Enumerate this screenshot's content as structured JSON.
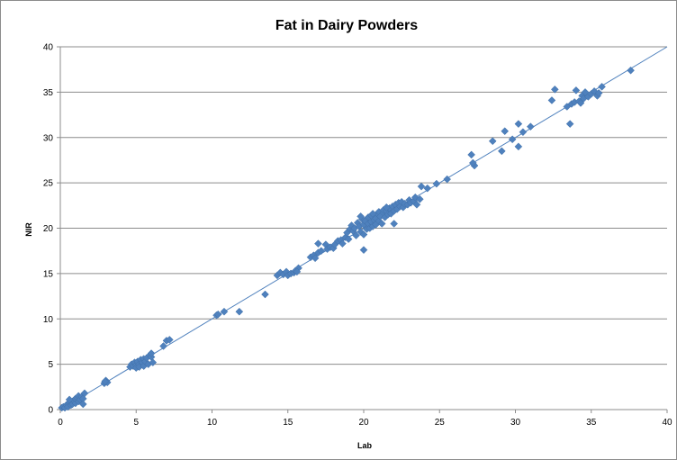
{
  "chart_data": {
    "type": "scatter",
    "title": "Fat in Dairy Powders",
    "xlabel": "Lab",
    "ylabel": "NIR",
    "xlim": [
      0,
      40
    ],
    "ylim": [
      0,
      40
    ],
    "xticks": [
      "0",
      "5",
      "10",
      "15",
      "20",
      "25",
      "30",
      "35",
      "40"
    ],
    "yticks": [
      "0",
      "5",
      "10",
      "15",
      "20",
      "25",
      "30",
      "35",
      "40"
    ],
    "grid": "horizontal",
    "legend": "none",
    "marker_color": "#4f81bd",
    "trendline": {
      "from": [
        0,
        0
      ],
      "to": [
        40,
        40
      ],
      "color": "#4f81bd"
    },
    "series": [
      {
        "points": [
          [
            0.1,
            0.2
          ],
          [
            0.2,
            0.3
          ],
          [
            0.3,
            0.2
          ],
          [
            0.4,
            0.5
          ],
          [
            0.5,
            0.6
          ],
          [
            0.5,
            0.3
          ],
          [
            0.6,
            0.8
          ],
          [
            0.7,
            0.5
          ],
          [
            0.8,
            0.9
          ],
          [
            0.8,
            0.6
          ],
          [
            0.9,
            1.0
          ],
          [
            1.0,
            0.7
          ],
          [
            1.0,
            1.2
          ],
          [
            1.1,
            1.3
          ],
          [
            1.2,
            0.9
          ],
          [
            1.2,
            1.5
          ],
          [
            1.3,
            1.1
          ],
          [
            1.4,
            1.4
          ],
          [
            1.5,
            1.2
          ],
          [
            1.5,
            0.6
          ],
          [
            1.6,
            1.8
          ],
          [
            0.6,
            1.1
          ],
          [
            2.9,
            2.9
          ],
          [
            3.0,
            3.2
          ],
          [
            3.1,
            3.0
          ],
          [
            2.95,
            3.1
          ],
          [
            4.6,
            4.7
          ],
          [
            4.7,
            5.0
          ],
          [
            4.8,
            4.8
          ],
          [
            4.9,
            5.2
          ],
          [
            5.0,
            4.9
          ],
          [
            5.0,
            4.6
          ],
          [
            5.1,
            5.3
          ],
          [
            5.2,
            5.0
          ],
          [
            5.2,
            4.7
          ],
          [
            5.3,
            5.5
          ],
          [
            5.4,
            5.2
          ],
          [
            5.5,
            4.8
          ],
          [
            5.5,
            5.6
          ],
          [
            5.6,
            5.3
          ],
          [
            5.7,
            5.7
          ],
          [
            5.8,
            5.0
          ],
          [
            5.9,
            6.0
          ],
          [
            6.0,
            5.8
          ],
          [
            6.1,
            5.2
          ],
          [
            6.0,
            6.2
          ],
          [
            6.8,
            7.0
          ],
          [
            7.0,
            7.6
          ],
          [
            7.2,
            7.7
          ],
          [
            10.3,
            10.4
          ],
          [
            10.4,
            10.5
          ],
          [
            10.8,
            10.8
          ],
          [
            11.8,
            10.8
          ],
          [
            13.5,
            12.7
          ],
          [
            14.3,
            14.8
          ],
          [
            14.5,
            15.1
          ],
          [
            14.7,
            14.9
          ],
          [
            14.9,
            15.2
          ],
          [
            15.0,
            14.8
          ],
          [
            15.2,
            15.0
          ],
          [
            15.4,
            15.1
          ],
          [
            15.5,
            15.3
          ],
          [
            15.7,
            15.6
          ],
          [
            15.6,
            15.2
          ],
          [
            16.5,
            16.8
          ],
          [
            16.7,
            17.0
          ],
          [
            16.8,
            16.7
          ],
          [
            17.0,
            17.3
          ],
          [
            17.0,
            18.3
          ],
          [
            17.2,
            17.5
          ],
          [
            17.5,
            18.2
          ],
          [
            17.6,
            17.7
          ],
          [
            17.8,
            17.9
          ],
          [
            18.0,
            17.8
          ],
          [
            18.1,
            18.2
          ],
          [
            18.3,
            18.6
          ],
          [
            18.5,
            18.7
          ],
          [
            18.6,
            18.3
          ],
          [
            18.8,
            19.0
          ],
          [
            18.9,
            19.5
          ],
          [
            19.0,
            18.8
          ],
          [
            19.1,
            19.9
          ],
          [
            19.2,
            20.3
          ],
          [
            19.3,
            19.7
          ],
          [
            19.4,
            20.0
          ],
          [
            19.5,
            19.2
          ],
          [
            19.6,
            20.6
          ],
          [
            19.7,
            20.2
          ],
          [
            19.8,
            19.6
          ],
          [
            19.9,
            21.0
          ],
          [
            20.0,
            20.4
          ],
          [
            20.0,
            19.3
          ],
          [
            20.1,
            20.8
          ],
          [
            20.2,
            19.9
          ],
          [
            20.3,
            21.2
          ],
          [
            20.3,
            20.5
          ],
          [
            20.4,
            20.0
          ],
          [
            20.5,
            20.7
          ],
          [
            20.5,
            21.4
          ],
          [
            20.6,
            20.2
          ],
          [
            20.7,
            20.9
          ],
          [
            20.8,
            21.1
          ],
          [
            20.8,
            20.4
          ],
          [
            20.9,
            21.6
          ],
          [
            21.0,
            20.8
          ],
          [
            21.0,
            21.8
          ],
          [
            21.1,
            21.3
          ],
          [
            21.2,
            20.5
          ],
          [
            21.3,
            21.7
          ],
          [
            21.3,
            22.0
          ],
          [
            21.4,
            21.2
          ],
          [
            21.5,
            21.9
          ],
          [
            21.6,
            21.5
          ],
          [
            21.7,
            22.2
          ],
          [
            21.8,
            21.6
          ],
          [
            21.9,
            22.4
          ],
          [
            22.0,
            21.9
          ],
          [
            22.1,
            22.6
          ],
          [
            22.2,
            22.1
          ],
          [
            22.3,
            22.8
          ],
          [
            22.4,
            22.4
          ],
          [
            22.5,
            22.9
          ],
          [
            22.6,
            22.3
          ],
          [
            22.7,
            22.7
          ],
          [
            22.9,
            22.6
          ],
          [
            23.0,
            23.1
          ],
          [
            23.1,
            22.8
          ],
          [
            23.3,
            23.0
          ],
          [
            23.5,
            22.6
          ],
          [
            23.4,
            23.4
          ],
          [
            23.7,
            23.2
          ],
          [
            23.8,
            24.6
          ],
          [
            22.0,
            20.5
          ],
          [
            20.0,
            17.6
          ],
          [
            19.8,
            21.3
          ],
          [
            20.6,
            21.6
          ],
          [
            21.5,
            22.3
          ],
          [
            24.2,
            24.4
          ],
          [
            24.8,
            24.9
          ],
          [
            25.5,
            25.4
          ],
          [
            27.1,
            28.1
          ],
          [
            27.3,
            26.9
          ],
          [
            27.2,
            27.2
          ],
          [
            28.5,
            29.6
          ],
          [
            29.1,
            28.5
          ],
          [
            29.3,
            30.7
          ],
          [
            29.8,
            29.8
          ],
          [
            30.2,
            31.5
          ],
          [
            30.5,
            30.6
          ],
          [
            30.2,
            29.0
          ],
          [
            31.0,
            31.2
          ],
          [
            32.4,
            34.1
          ],
          [
            32.6,
            35.3
          ],
          [
            33.4,
            33.4
          ],
          [
            33.6,
            31.5
          ],
          [
            33.7,
            33.7
          ],
          [
            33.9,
            33.9
          ],
          [
            34.0,
            35.2
          ],
          [
            34.2,
            34.0
          ],
          [
            34.3,
            33.8
          ],
          [
            34.4,
            34.6
          ],
          [
            34.5,
            34.3
          ],
          [
            34.6,
            35.0
          ],
          [
            34.8,
            34.5
          ],
          [
            35.0,
            34.8
          ],
          [
            35.2,
            35.1
          ],
          [
            35.4,
            34.6
          ],
          [
            35.5,
            34.9
          ],
          [
            35.7,
            35.6
          ],
          [
            37.6,
            37.4
          ]
        ]
      }
    ]
  }
}
